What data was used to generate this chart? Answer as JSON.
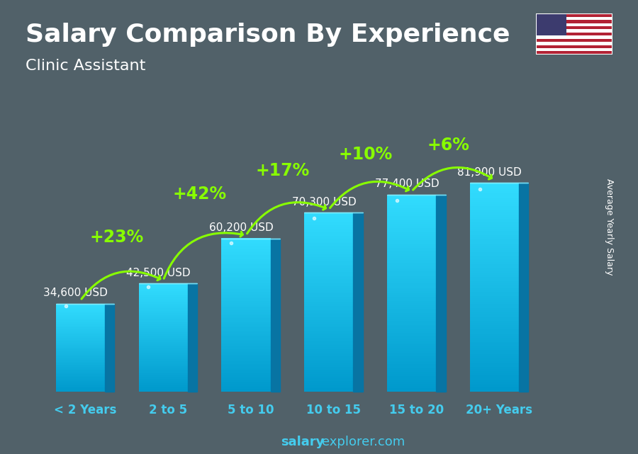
{
  "title": "Salary Comparison By Experience",
  "subtitle": "Clinic Assistant",
  "ylabel": "Average Yearly Salary",
  "categories": [
    "< 2 Years",
    "2 to 5",
    "5 to 10",
    "10 to 15",
    "15 to 20",
    "20+ Years"
  ],
  "values": [
    34600,
    42500,
    60200,
    70300,
    77400,
    81900
  ],
  "pct_labels": [
    null,
    "+23%",
    "+42%",
    "+17%",
    "+10%",
    "+6%"
  ],
  "salary_labels": [
    "34,600 USD",
    "42,500 USD",
    "60,200 USD",
    "70,300 USD",
    "77,400 USD",
    "81,900 USD"
  ],
  "pct_color": "#88ff00",
  "salary_color": "#ffffff",
  "title_color": "#ffffff",
  "subtitle_color": "#ffffff",
  "bg_color": "#5a6a72",
  "bar_front_top": "#44ddff",
  "bar_front_bot": "#0099cc",
  "bar_side": "#0077aa",
  "bar_top": "#88eeff",
  "cat_color": "#44ccee",
  "watermark_bold": "salary",
  "watermark_normal": "explorer.com",
  "title_fontsize": 26,
  "subtitle_fontsize": 16,
  "salary_fontsize": 11,
  "pct_fontsize": 17,
  "cat_fontsize": 12,
  "ylabel_fontsize": 9,
  "wm_fontsize": 13
}
